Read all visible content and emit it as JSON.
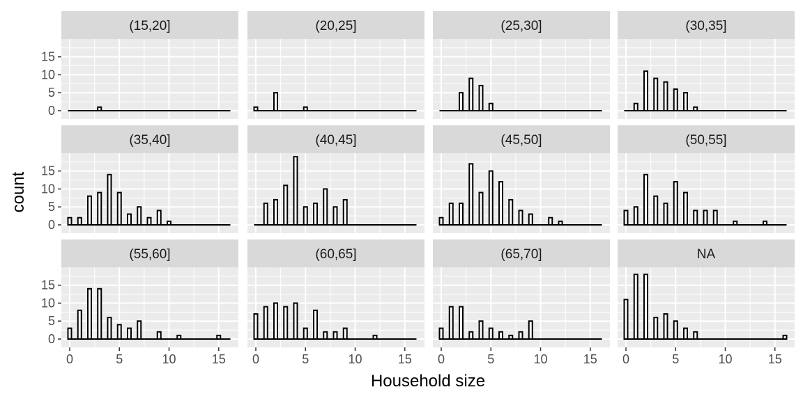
{
  "chart_data": {
    "type": "bar",
    "facet_by": "age group",
    "xlabel": "Household size",
    "ylabel": "count",
    "xlim": [
      0,
      16
    ],
    "ylim": [
      0,
      19
    ],
    "x_ticks": [
      0,
      5,
      10,
      15
    ],
    "y_ticks": [
      0,
      5,
      10,
      15
    ],
    "grid": true,
    "colors": {
      "panel_bg": "#EBEBEB",
      "strip_bg": "#D9D9D9",
      "grid": "#FFFFFF",
      "bar_fill": "#FFFFFF",
      "bar_stroke": "#000000"
    },
    "x": [
      0,
      1,
      2,
      3,
      4,
      5,
      6,
      7,
      8,
      9,
      10,
      11,
      12,
      13,
      14,
      15,
      16
    ],
    "panels": [
      {
        "label": "(15,20]",
        "values": [
          0,
          0,
          0,
          1,
          0,
          0,
          0,
          0,
          0,
          0,
          0,
          0,
          0,
          0,
          0,
          0,
          0
        ]
      },
      {
        "label": "(20,25]",
        "values": [
          1,
          0,
          5,
          0,
          0,
          1,
          0,
          0,
          0,
          0,
          0,
          0,
          0,
          0,
          0,
          0,
          0
        ]
      },
      {
        "label": "(25,30]",
        "values": [
          0,
          0,
          5,
          9,
          7,
          2,
          0,
          0,
          0,
          0,
          0,
          0,
          0,
          0,
          0,
          0,
          0
        ]
      },
      {
        "label": "(30,35]",
        "values": [
          0,
          2,
          11,
          9,
          8,
          6,
          5,
          1,
          0,
          0,
          0,
          0,
          0,
          0,
          0,
          0,
          0
        ]
      },
      {
        "label": "(35,40]",
        "values": [
          2,
          2,
          8,
          9,
          14,
          9,
          3,
          5,
          2,
          4,
          1,
          0,
          0,
          0,
          0,
          0,
          0
        ]
      },
      {
        "label": "(40,45]",
        "values": [
          0,
          6,
          7,
          11,
          19,
          5,
          6,
          10,
          5,
          7,
          0,
          0,
          0,
          0,
          0,
          0,
          0
        ]
      },
      {
        "label": "(45,50]",
        "values": [
          2,
          6,
          6,
          17,
          9,
          15,
          12,
          7,
          4,
          3,
          0,
          2,
          1,
          0,
          0,
          0,
          0
        ]
      },
      {
        "label": "(50,55]",
        "values": [
          4,
          5,
          14,
          8,
          6,
          12,
          9,
          4,
          4,
          4,
          0,
          1,
          0,
          0,
          1,
          0,
          0
        ]
      },
      {
        "label": "(55,60]",
        "values": [
          3,
          8,
          14,
          14,
          6,
          4,
          3,
          5,
          0,
          2,
          0,
          1,
          0,
          0,
          0,
          1,
          0
        ]
      },
      {
        "label": "(60,65]",
        "values": [
          7,
          9,
          10,
          9,
          10,
          3,
          8,
          2,
          2,
          3,
          0,
          0,
          1,
          0,
          0,
          0,
          0
        ]
      },
      {
        "label": "(65,70]",
        "values": [
          3,
          9,
          9,
          2,
          5,
          3,
          2,
          1,
          2,
          5,
          0,
          0,
          0,
          0,
          0,
          0,
          0
        ]
      },
      {
        "label": "NA",
        "values": [
          11,
          18,
          18,
          6,
          7,
          5,
          3,
          2,
          0,
          0,
          0,
          0,
          0,
          0,
          0,
          0,
          1
        ]
      }
    ]
  }
}
